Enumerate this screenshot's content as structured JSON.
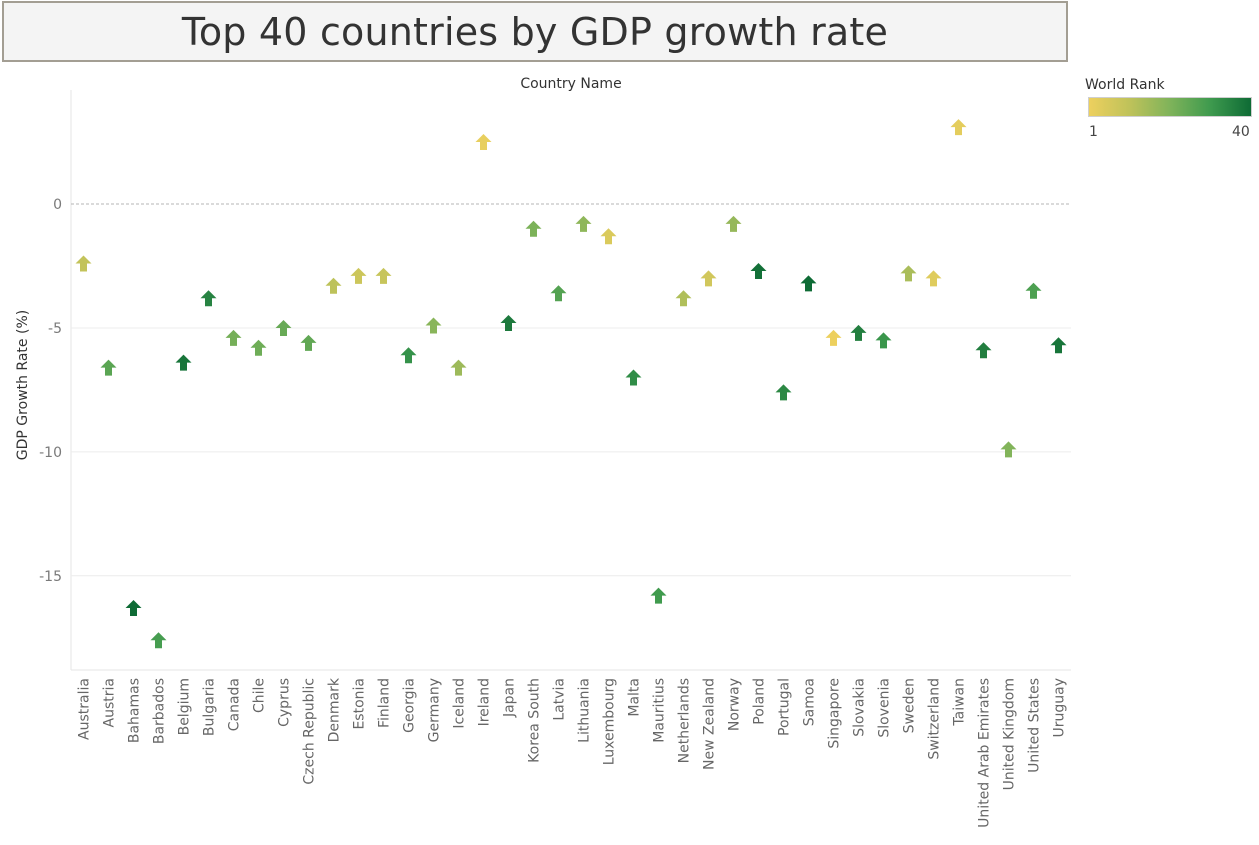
{
  "title": "Top 40 countries by GDP growth rate",
  "legend": {
    "title": "World Rank",
    "min_label": "1",
    "max_label": "40",
    "min": 1,
    "max": 40,
    "colors": [
      "#edd05e",
      "#bfc25a",
      "#7fb35a",
      "#3e9a4e",
      "#0e6b35"
    ]
  },
  "chart_data": {
    "type": "scatter",
    "marker": "up-arrow",
    "title": "Top 40 countries by GDP growth rate",
    "xlabel": "Country Name",
    "ylabel": "GDP Growth Rate (%)",
    "yticks": [
      0,
      -5,
      -10,
      -15
    ],
    "ytick_labels": [
      "0",
      "-5",
      "-10",
      "-15"
    ],
    "ylim": [
      -18.8,
      4.6
    ],
    "reference_line": 0,
    "grid": true,
    "legend_position": "top-right",
    "color_encoding": "World Rank",
    "points": [
      {
        "country": "Australia",
        "value": -2.4,
        "rank": 10
      },
      {
        "country": "Austria",
        "value": -6.6,
        "rank": 26
      },
      {
        "country": "Bahamas",
        "value": -16.3,
        "rank": 40
      },
      {
        "country": "Barbados",
        "value": -17.6,
        "rank": 29
      },
      {
        "country": "Belgium",
        "value": -6.4,
        "rank": 38
      },
      {
        "country": "Bulgaria",
        "value": -3.8,
        "rank": 35
      },
      {
        "country": "Canada",
        "value": -5.4,
        "rank": 22
      },
      {
        "country": "Chile",
        "value": -5.8,
        "rank": 23
      },
      {
        "country": "Cyprus",
        "value": -5.0,
        "rank": 24
      },
      {
        "country": "Czech Republic",
        "value": -5.6,
        "rank": 25
      },
      {
        "country": "Denmark",
        "value": -3.3,
        "rank": 11
      },
      {
        "country": "Estonia",
        "value": -2.9,
        "rank": 8
      },
      {
        "country": "Finland",
        "value": -2.9,
        "rank": 9
      },
      {
        "country": "Georgia",
        "value": -6.1,
        "rank": 32
      },
      {
        "country": "Germany",
        "value": -4.9,
        "rank": 19
      },
      {
        "country": "Iceland",
        "value": -6.6,
        "rank": 16
      },
      {
        "country": "Ireland",
        "value": 2.5,
        "rank": 2
      },
      {
        "country": "Japan",
        "value": -4.8,
        "rank": 37
      },
      {
        "country": "Korea South",
        "value": -1.0,
        "rank": 21
      },
      {
        "country": "Latvia",
        "value": -3.6,
        "rank": 27
      },
      {
        "country": "Lithuania",
        "value": -0.8,
        "rank": 18
      },
      {
        "country": "Luxembourg",
        "value": -1.3,
        "rank": 5
      },
      {
        "country": "Malta",
        "value": -7.0,
        "rank": 33
      },
      {
        "country": "Mauritius",
        "value": -15.8,
        "rank": 30
      },
      {
        "country": "Netherlands",
        "value": -3.8,
        "rank": 13
      },
      {
        "country": "New Zealand",
        "value": -3.0,
        "rank": 7
      },
      {
        "country": "Norway",
        "value": -0.8,
        "rank": 17
      },
      {
        "country": "Poland",
        "value": -2.7,
        "rank": 39
      },
      {
        "country": "Portugal",
        "value": -7.6,
        "rank": 34
      },
      {
        "country": "Samoa",
        "value": -3.2,
        "rank": 40
      },
      {
        "country": "Singapore",
        "value": -5.4,
        "rank": 1
      },
      {
        "country": "Slovakia",
        "value": -5.2,
        "rank": 36
      },
      {
        "country": "Slovenia",
        "value": -5.5,
        "rank": 31
      },
      {
        "country": "Sweden",
        "value": -2.8,
        "rank": 14
      },
      {
        "country": "Switzerland",
        "value": -3.0,
        "rank": 4
      },
      {
        "country": "Taiwan",
        "value": 3.1,
        "rank": 3
      },
      {
        "country": "United Arab Emirates",
        "value": -5.9,
        "rank": 36
      },
      {
        "country": "United Kingdom",
        "value": -9.9,
        "rank": 20
      },
      {
        "country": "United States",
        "value": -3.5,
        "rank": 28
      },
      {
        "country": "Uruguay",
        "value": -5.7,
        "rank": 38
      }
    ]
  }
}
